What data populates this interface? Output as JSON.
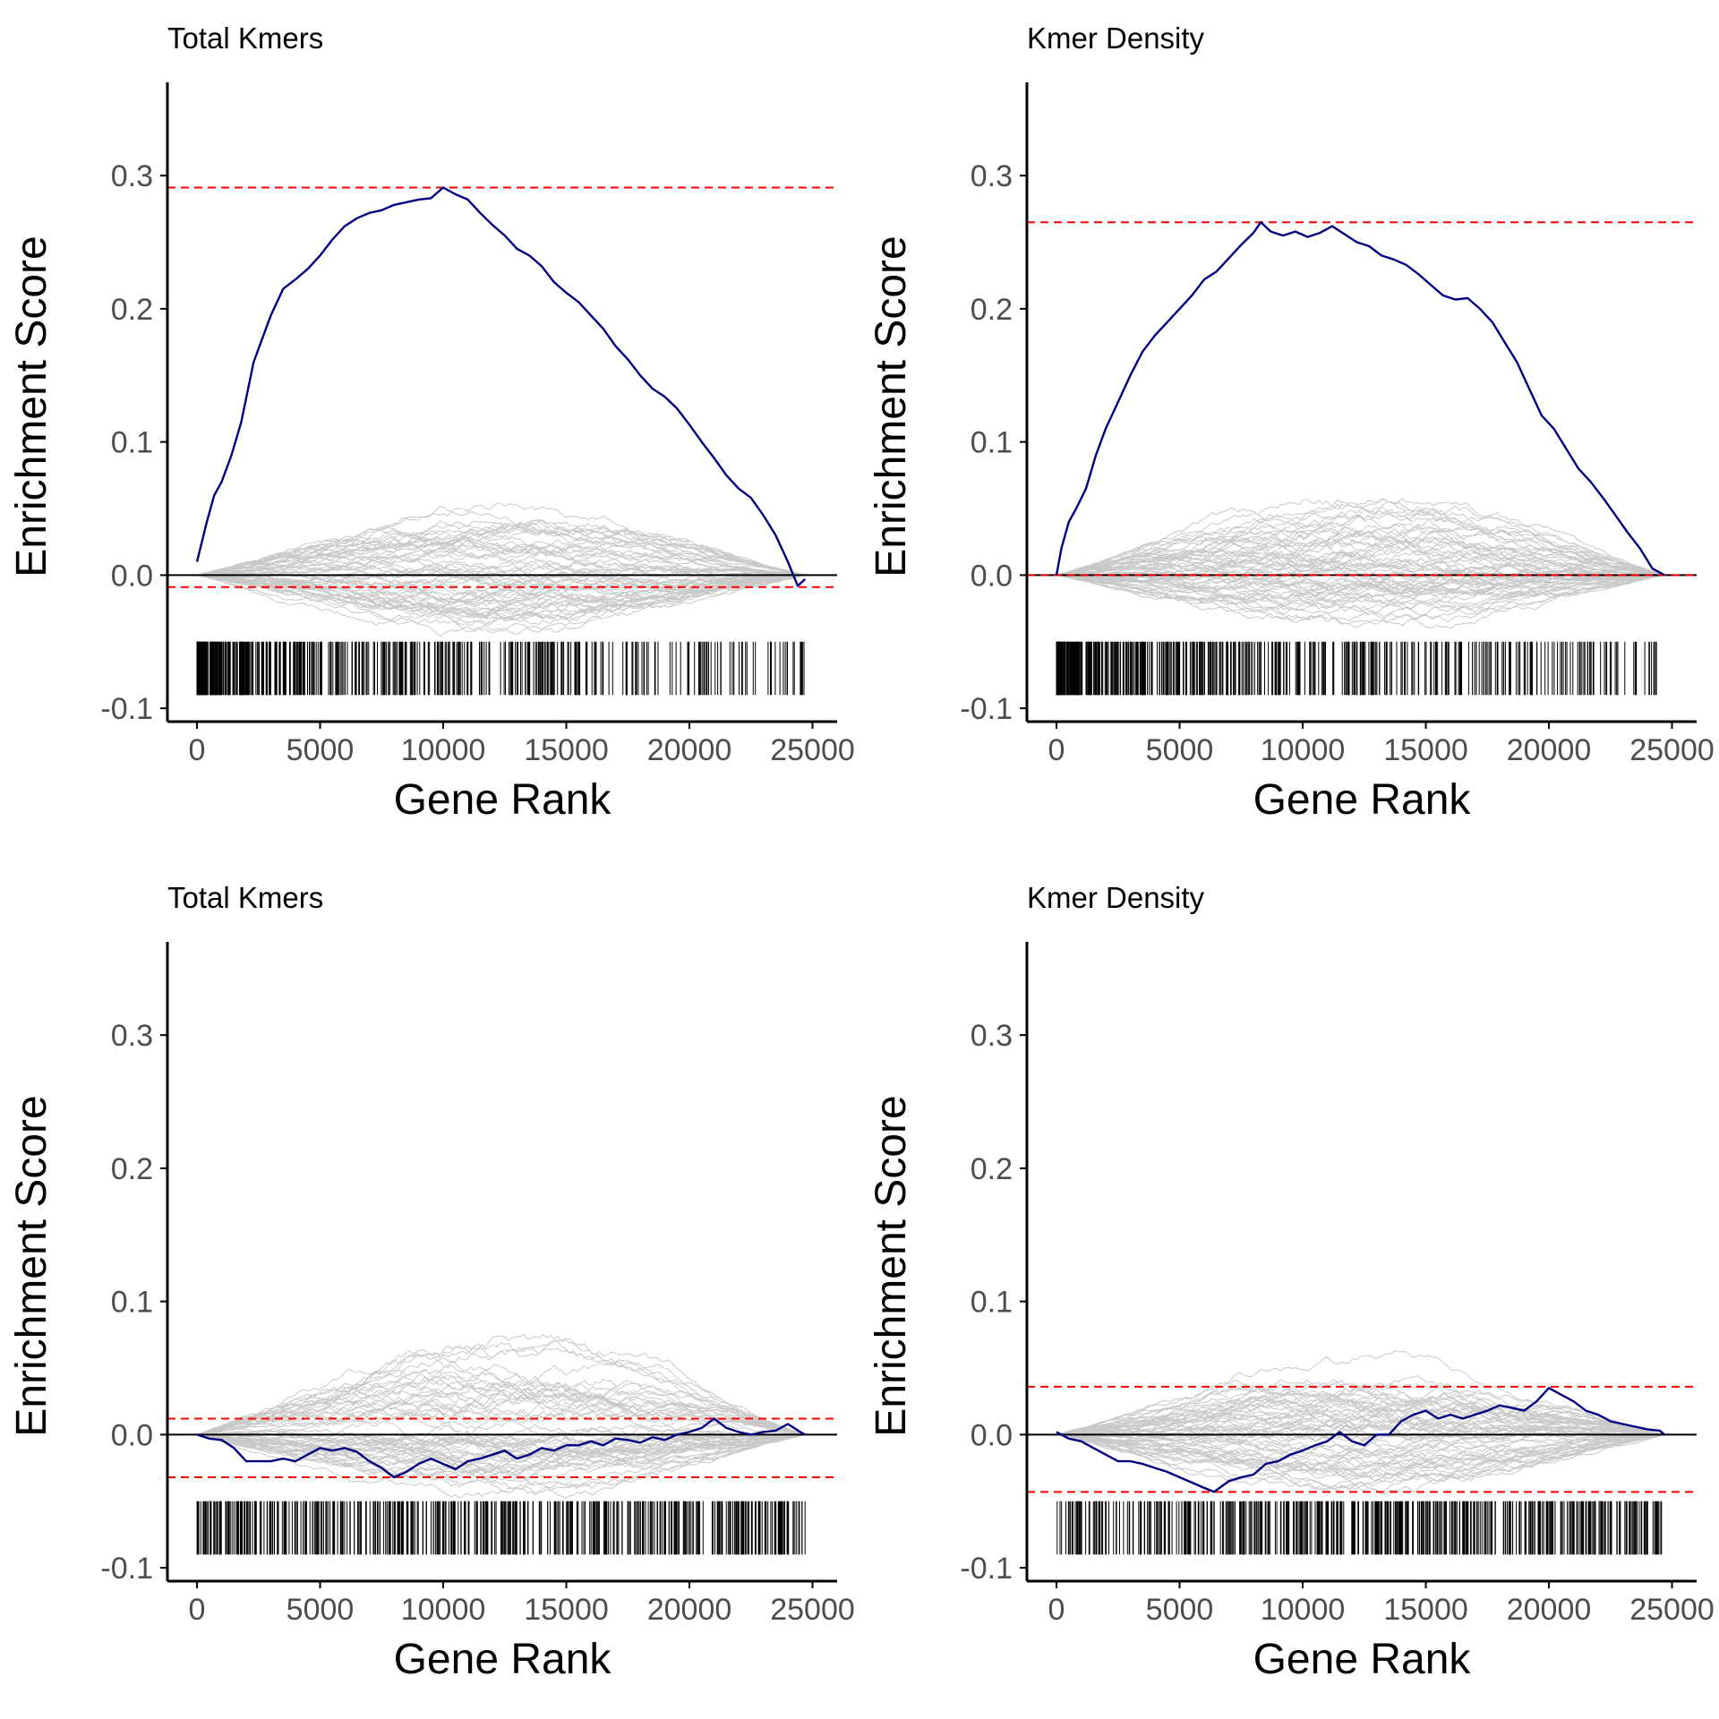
{
  "figure": {
    "background": "#ffffff",
    "colors": {
      "es_line": "#000080",
      "random_walks": "#c8c8c8",
      "threshold": "#ff0000",
      "zero_line": "#000000",
      "hits": "#000000",
      "axis": "#000000",
      "tick_text": "#4d4d4d"
    }
  },
  "chart_data": [
    {
      "type": "line",
      "title": "Total Kmers",
      "xlabel": "Gene Rank",
      "ylabel": "Enrichment Score",
      "xlim": [
        -1200,
        26000
      ],
      "ylim": [
        -0.11,
        0.37
      ],
      "x_ticks": [
        0,
        5000,
        10000,
        15000,
        20000,
        25000
      ],
      "x_tick_labels": [
        "0",
        "5000",
        "10000",
        "15000",
        "20000",
        "25000"
      ],
      "y_ticks": [
        -0.1,
        0.0,
        0.1,
        0.2,
        0.3
      ],
      "y_tick_labels": [
        "-0.1",
        "0.0",
        "0.1",
        "0.2",
        "0.3"
      ],
      "grid": false,
      "thresholds": [
        0.291,
        -0.009
      ],
      "random_walk_envelope": {
        "peak": 0.045,
        "trough": -0.045,
        "count": 60
      },
      "hit_band": [
        -0.05,
        -0.09
      ],
      "hit_density": "front",
      "series": [
        {
          "x": [
            0,
            200,
            400,
            700,
            1000,
            1400,
            1800,
            2300,
            2600,
            3000,
            3500,
            4000,
            4500,
            5000,
            5500,
            6000,
            6500,
            7000,
            7500,
            8000,
            8500,
            9000,
            9500,
            10000,
            10500,
            11000,
            11500,
            12000,
            12500,
            13000,
            13500,
            14000,
            14500,
            15000,
            15500,
            16000,
            16500,
            17000,
            17500,
            18000,
            18500,
            19000,
            19500,
            20000,
            20500,
            21000,
            21500,
            22000,
            22500,
            23000,
            23500,
            24000,
            24400,
            24700
          ],
          "y": [
            0.01,
            0.025,
            0.04,
            0.06,
            0.07,
            0.09,
            0.115,
            0.16,
            0.175,
            0.195,
            0.215,
            0.222,
            0.23,
            0.24,
            0.252,
            0.262,
            0.268,
            0.272,
            0.274,
            0.278,
            0.28,
            0.282,
            0.283,
            0.291,
            0.286,
            0.282,
            0.272,
            0.263,
            0.255,
            0.245,
            0.24,
            0.232,
            0.22,
            0.212,
            0.205,
            0.195,
            0.185,
            0.172,
            0.162,
            0.15,
            0.14,
            0.134,
            0.125,
            0.113,
            0.1,
            0.088,
            0.075,
            0.065,
            0.058,
            0.045,
            0.03,
            0.01,
            -0.008,
            -0.003
          ]
        }
      ]
    },
    {
      "type": "line",
      "title": "Kmer Density",
      "xlabel": "Gene Rank",
      "ylabel": "Enrichment Score",
      "xlim": [
        -1200,
        26000
      ],
      "ylim": [
        -0.11,
        0.37
      ],
      "x_ticks": [
        0,
        5000,
        10000,
        15000,
        20000,
        25000
      ],
      "x_tick_labels": [
        "0",
        "5000",
        "10000",
        "15000",
        "20000",
        "25000"
      ],
      "y_ticks": [
        -0.1,
        0.0,
        0.1,
        0.2,
        0.3
      ],
      "y_tick_labels": [
        "-0.1",
        "0.0",
        "0.1",
        "0.2",
        "0.3"
      ],
      "grid": false,
      "thresholds": [
        0.265,
        0.0
      ],
      "random_walk_envelope": {
        "peak": 0.055,
        "trough": -0.045,
        "count": 60
      },
      "hit_band": [
        -0.05,
        -0.09
      ],
      "hit_density": "front",
      "series": [
        {
          "x": [
            0,
            200,
            500,
            800,
            1200,
            1600,
            2000,
            2500,
            3000,
            3500,
            4000,
            4500,
            5000,
            5500,
            6000,
            6500,
            7000,
            7500,
            8000,
            8300,
            8700,
            9200,
            9700,
            10200,
            10700,
            11200,
            11700,
            12200,
            12700,
            13200,
            13700,
            14200,
            14700,
            15200,
            15700,
            16200,
            16700,
            17200,
            17700,
            18200,
            18700,
            19200,
            19700,
            20200,
            20700,
            21200,
            21700,
            22200,
            22700,
            23200,
            23700,
            24200,
            24700
          ],
          "y": [
            0.0,
            0.02,
            0.04,
            0.05,
            0.065,
            0.09,
            0.11,
            0.13,
            0.15,
            0.168,
            0.18,
            0.19,
            0.2,
            0.21,
            0.222,
            0.228,
            0.238,
            0.248,
            0.257,
            0.265,
            0.258,
            0.255,
            0.258,
            0.254,
            0.257,
            0.262,
            0.256,
            0.25,
            0.247,
            0.24,
            0.237,
            0.233,
            0.226,
            0.218,
            0.21,
            0.207,
            0.208,
            0.2,
            0.19,
            0.175,
            0.16,
            0.14,
            0.12,
            0.11,
            0.095,
            0.08,
            0.07,
            0.058,
            0.045,
            0.032,
            0.02,
            0.005,
            0.0
          ]
        }
      ]
    },
    {
      "type": "line",
      "title": "Total Kmers",
      "xlabel": "Gene Rank",
      "ylabel": "Enrichment Score",
      "xlim": [
        -1200,
        26000
      ],
      "ylim": [
        -0.11,
        0.37
      ],
      "x_ticks": [
        0,
        5000,
        10000,
        15000,
        20000,
        25000
      ],
      "x_tick_labels": [
        "0",
        "5000",
        "10000",
        "15000",
        "20000",
        "25000"
      ],
      "y_ticks": [
        -0.1,
        0.0,
        0.1,
        0.2,
        0.3
      ],
      "y_tick_labels": [
        "-0.1",
        "0.0",
        "0.1",
        "0.2",
        "0.3"
      ],
      "grid": false,
      "thresholds": [
        0.012,
        -0.032
      ],
      "random_walk_envelope": {
        "peak": 0.06,
        "trough": -0.045,
        "count": 60
      },
      "hit_band": [
        -0.05,
        -0.09
      ],
      "hit_density": "uniform",
      "series": [
        {
          "x": [
            0,
            500,
            1000,
            1500,
            2000,
            2500,
            3000,
            3500,
            4000,
            4500,
            5000,
            5500,
            6000,
            6500,
            7000,
            7500,
            8000,
            8500,
            9000,
            9500,
            10000,
            10500,
            11000,
            11500,
            12000,
            12500,
            13000,
            13500,
            14000,
            14500,
            15000,
            15500,
            16000,
            16500,
            17000,
            17500,
            18000,
            18500,
            19000,
            19500,
            20000,
            20500,
            21000,
            21500,
            22000,
            22500,
            23000,
            23500,
            24000,
            24500,
            24700
          ],
          "y": [
            0.0,
            -0.003,
            -0.004,
            -0.01,
            -0.02,
            -0.02,
            -0.02,
            -0.018,
            -0.02,
            -0.015,
            -0.01,
            -0.012,
            -0.01,
            -0.013,
            -0.02,
            -0.025,
            -0.032,
            -0.028,
            -0.022,
            -0.018,
            -0.022,
            -0.026,
            -0.02,
            -0.018,
            -0.015,
            -0.012,
            -0.018,
            -0.015,
            -0.01,
            -0.012,
            -0.008,
            -0.008,
            -0.005,
            -0.008,
            -0.003,
            -0.004,
            -0.006,
            -0.002,
            -0.004,
            0.0,
            0.002,
            0.005,
            0.012,
            0.005,
            0.002,
            0.0,
            0.002,
            0.003,
            0.008,
            0.002,
            0.0
          ]
        }
      ]
    },
    {
      "type": "line",
      "title": "Kmer Density",
      "xlabel": "Gene Rank",
      "ylabel": "Enrichment Score",
      "xlim": [
        -1200,
        26000
      ],
      "ylim": [
        -0.11,
        0.37
      ],
      "x_ticks": [
        0,
        5000,
        10000,
        15000,
        20000,
        25000
      ],
      "x_tick_labels": [
        "0",
        "5000",
        "10000",
        "15000",
        "20000",
        "25000"
      ],
      "y_ticks": [
        -0.1,
        0.0,
        0.1,
        0.2,
        0.3
      ],
      "y_tick_labels": [
        "-0.1",
        "0.0",
        "0.1",
        "0.2",
        "0.3"
      ],
      "grid": false,
      "thresholds": [
        0.036,
        -0.043
      ],
      "random_walk_envelope": {
        "peak": 0.05,
        "trough": -0.045,
        "count": 60
      },
      "hit_band": [
        -0.05,
        -0.09
      ],
      "hit_density": "uniform",
      "series": [
        {
          "x": [
            0,
            500,
            1000,
            1500,
            2000,
            2500,
            3000,
            3500,
            4000,
            4500,
            5000,
            5500,
            6000,
            6400,
            7000,
            7500,
            8000,
            8500,
            9000,
            9500,
            10000,
            10500,
            11000,
            11500,
            12000,
            12500,
            13000,
            13500,
            14000,
            14500,
            15000,
            15500,
            16000,
            16500,
            17000,
            17500,
            18000,
            18500,
            19000,
            19500,
            20000,
            20500,
            21000,
            21500,
            22000,
            22500,
            23000,
            23500,
            24000,
            24500,
            24700
          ],
          "y": [
            0.002,
            -0.003,
            -0.005,
            -0.01,
            -0.015,
            -0.02,
            -0.02,
            -0.022,
            -0.025,
            -0.028,
            -0.032,
            -0.036,
            -0.04,
            -0.043,
            -0.035,
            -0.032,
            -0.03,
            -0.022,
            -0.02,
            -0.015,
            -0.012,
            -0.008,
            -0.005,
            0.002,
            -0.005,
            -0.008,
            0.0,
            0.0,
            0.01,
            0.015,
            0.018,
            0.012,
            0.015,
            0.012,
            0.015,
            0.018,
            0.022,
            0.02,
            0.018,
            0.025,
            0.035,
            0.03,
            0.025,
            0.018,
            0.015,
            0.01,
            0.008,
            0.006,
            0.004,
            0.003,
            0.0
          ]
        }
      ]
    }
  ]
}
